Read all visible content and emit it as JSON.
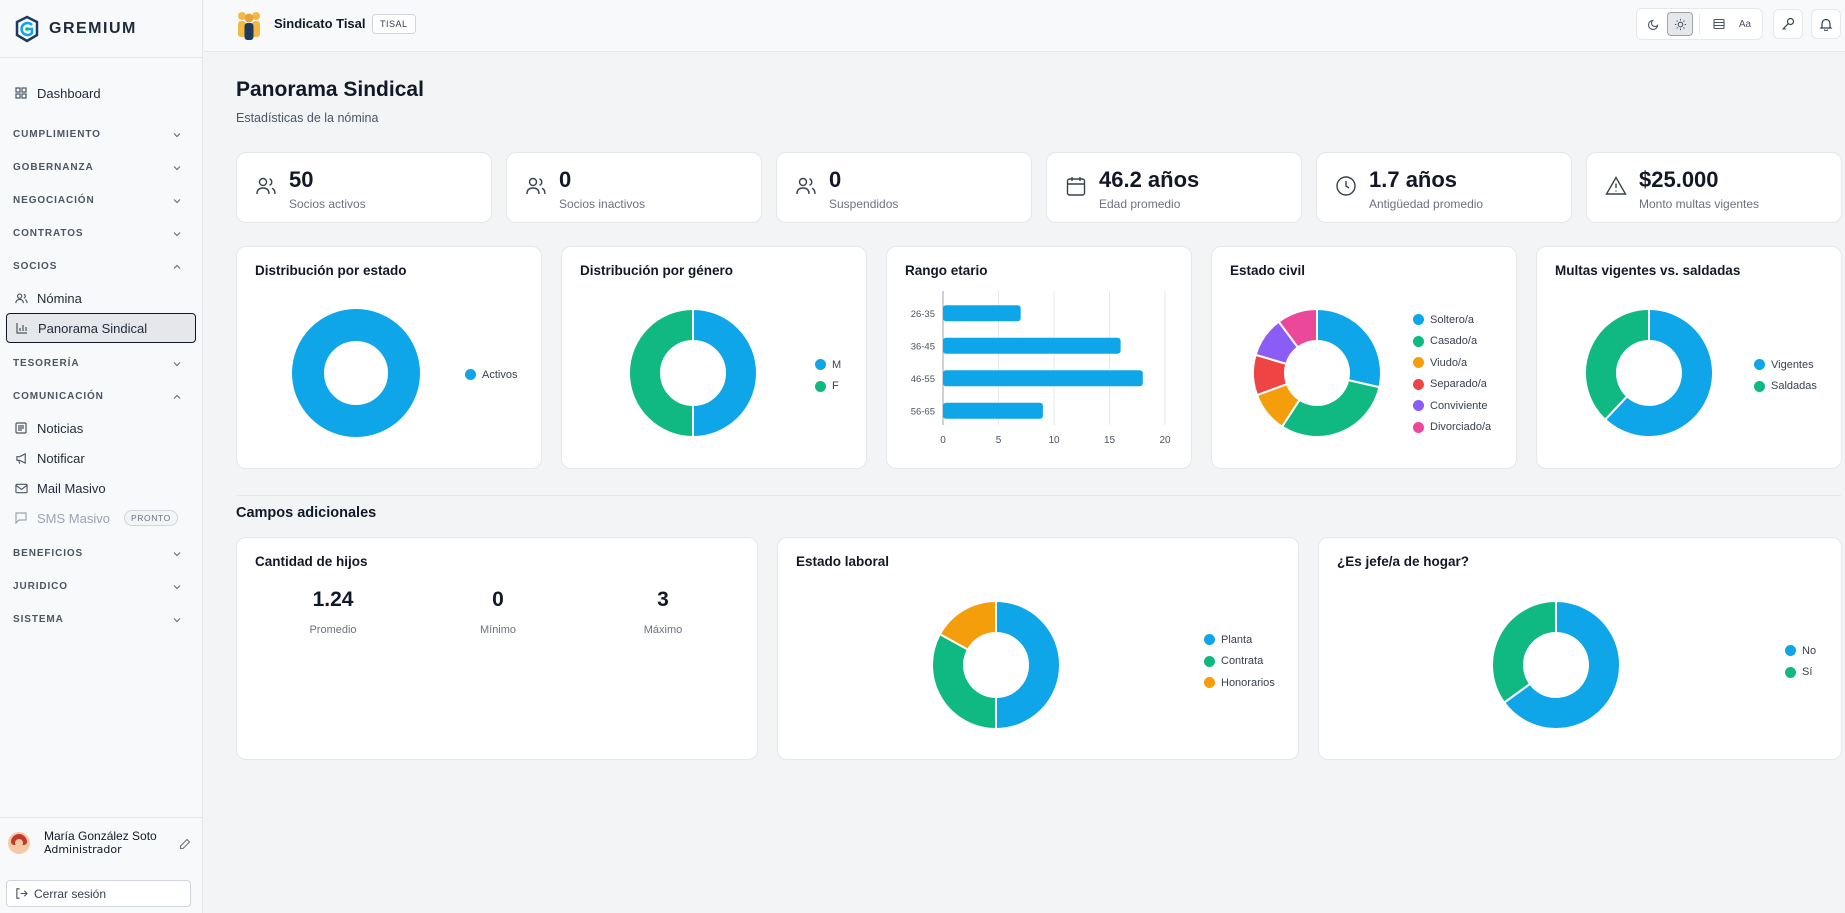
{
  "brand": {
    "name": "GREMIUM"
  },
  "sidebar": {
    "dashboard": "Dashboard",
    "sections": {
      "cumplimiento": "CUMPLIMIENTO",
      "gobernanza": "GOBERNANZA",
      "negociacion": "NEGOCIACIÓN",
      "contratos": "CONTRATOS",
      "socios": "SOCIOS",
      "tesoreria": "TESORERÍA",
      "comunicacion": "COMUNICACIÓN",
      "beneficios": "BENEFICIOS",
      "juridico": "JURIDICO",
      "sistema": "SISTEMA"
    },
    "socios_items": {
      "nomina": "Nómina",
      "panorama": "Panorama Sindical"
    },
    "comunicacion_items": {
      "noticias": "Noticias",
      "notificar": "Notificar",
      "mail": "Mail Masivo",
      "sms": "SMS Masivo",
      "sms_badge": "PRONTO"
    }
  },
  "user": {
    "name": "María González Soto",
    "role": "Administrador",
    "logout": "Cerrar sesión"
  },
  "topbar": {
    "org_name": "Sindicato Tisal",
    "org_tag": "TISAL",
    "font_tool": "Aa"
  },
  "page": {
    "title": "Panorama Sindical",
    "subtitle": "Estadísticas de la nómina"
  },
  "stats": [
    {
      "value": "50",
      "label": "Socios activos"
    },
    {
      "value": "0",
      "label": "Socios inactivos"
    },
    {
      "value": "0",
      "label": "Suspendidos"
    },
    {
      "value": "46.2 años",
      "label": "Edad promedio"
    },
    {
      "value": "1.7 años",
      "label": "Antigüedad promedio"
    },
    {
      "value": "$25.000",
      "label": "Monto multas vigentes"
    }
  ],
  "colors": {
    "blue": "#0ea5e9",
    "green": "#10b981",
    "amber": "#f59e0b",
    "red": "#ef4444",
    "violet": "#8b5cf6",
    "pink": "#ec4899"
  },
  "chart_data": [
    {
      "type": "pie",
      "title": "Distribución por estado",
      "labels": [
        "Activos"
      ],
      "values": [
        50
      ],
      "colors": [
        "#0ea5e9"
      ]
    },
    {
      "type": "pie",
      "title": "Distribución por género",
      "labels": [
        "M",
        "F"
      ],
      "values": [
        25,
        25
      ],
      "colors": [
        "#0ea5e9",
        "#10b981"
      ]
    },
    {
      "type": "bar",
      "orientation": "horizontal",
      "title": "Rango etario",
      "categories": [
        "26-35",
        "36-45",
        "46-55",
        "56-65"
      ],
      "values": [
        7,
        16,
        18,
        9
      ],
      "xlim": [
        0,
        20
      ],
      "xticks": [
        0,
        5,
        10,
        15,
        20
      ],
      "grid": true,
      "color": "#0ea5e9"
    },
    {
      "type": "pie",
      "title": "Estado civil",
      "labels": [
        "Soltero/a",
        "Casado/a",
        "Viudo/a",
        "Separado/a",
        "Conviviente",
        "Divorciado/a"
      ],
      "values": [
        14,
        15,
        5,
        5,
        5,
        5
      ],
      "colors": [
        "#0ea5e9",
        "#10b981",
        "#f59e0b",
        "#ef4444",
        "#8b5cf6",
        "#ec4899"
      ]
    },
    {
      "type": "pie",
      "title": "Multas vigentes vs. saldadas",
      "labels": [
        "Vigentes",
        "Saldadas"
      ],
      "values": [
        62,
        38
      ],
      "colors": [
        "#0ea5e9",
        "#10b981"
      ]
    },
    {
      "type": "pie",
      "title": "Estado laboral",
      "labels": [
        "Planta",
        "Contrata",
        "Honorarios"
      ],
      "values": [
        50,
        33,
        17
      ],
      "colors": [
        "#0ea5e9",
        "#10b981",
        "#f59e0b"
      ]
    },
    {
      "type": "pie",
      "title": "¿Es jefe/a de hogar?",
      "labels": [
        "No",
        "Sí"
      ],
      "values": [
        65,
        35
      ],
      "colors": [
        "#0ea5e9",
        "#10b981"
      ]
    }
  ],
  "campos": {
    "title": "Campos adicionales",
    "hijos": {
      "title": "Cantidad de hijos",
      "promedio": "1.24",
      "promedio_label": "Promedio",
      "minimo": "0",
      "minimo_label": "Mínimo",
      "maximo": "3",
      "maximo_label": "Máximo"
    }
  }
}
